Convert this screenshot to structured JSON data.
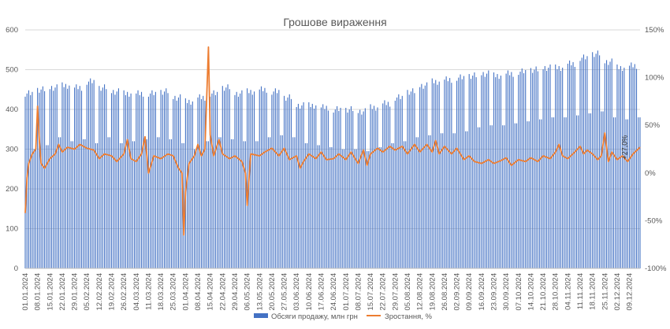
{
  "chart_data": {
    "type": "bar+line",
    "title": "Грошове вираження",
    "series": [
      {
        "name": "Обсяги продажу, млн грн",
        "type": "bar",
        "axis": "left",
        "color": "#4472C4"
      },
      {
        "name": "Зростання, %",
        "type": "line",
        "axis": "right",
        "color": "#ED7D31"
      }
    ],
    "y_left": {
      "min": 0,
      "max": 600,
      "ticks": [
        "0",
        "100",
        "200",
        "300",
        "400",
        "500",
        "600"
      ]
    },
    "y_right": {
      "min": -100,
      "max": 150,
      "ticks": [
        "-100%",
        "-50%",
        "0%",
        "50%",
        "100%",
        "150%"
      ]
    },
    "x_range": {
      "start": "01.01.2024",
      "end": "15.12.2024"
    },
    "x_ticks": [
      "01.01.2024",
      "08.01.2024",
      "15.01.2024",
      "22.01.2024",
      "29.01.2024",
      "05.02.2024",
      "12.02.2024",
      "19.02.2024",
      "26.02.2024",
      "04.03.2024",
      "11.03.2024",
      "18.03.2024",
      "25.03.2024",
      "01.04.2024",
      "08.04.2024",
      "15.04.2024",
      "22.04.2024",
      "29.04.2024",
      "06.05.2024",
      "13.05.2024",
      "20.05.2024",
      "27.05.2024",
      "03.06.2024",
      "10.06.2024",
      "17.06.2024",
      "24.06.2024",
      "01.07.2024",
      "08.07.2024",
      "15.07.2024",
      "22.07.2024",
      "29.07.2024",
      "05.08.2024",
      "12.08.2024",
      "19.08.2024",
      "26.08.2024",
      "02.09.2024",
      "09.09.2024",
      "16.09.2024",
      "23.09.2024",
      "30.09.2024",
      "07.10.2024",
      "14.10.2024",
      "21.10.2024",
      "28.10.2024",
      "04.11.2024",
      "11.11.2024",
      "18.11.2024",
      "25.11.2024",
      "02.12.2024",
      "09.12.2024"
    ],
    "weekly_sales": [
      {
        "week": "01.01.2024",
        "weekday": 440,
        "weekend": 300
      },
      {
        "week": "08.01.2024",
        "weekday": 450,
        "weekend": 310
      },
      {
        "week": "15.01.2024",
        "weekday": 455,
        "weekend": 330
      },
      {
        "week": "22.01.2024",
        "weekday": 460,
        "weekend": 320
      },
      {
        "week": "29.01.2024",
        "weekday": 455,
        "weekend": 325
      },
      {
        "week": "05.02.2024",
        "weekday": 470,
        "weekend": 315
      },
      {
        "week": "12.02.2024",
        "weekday": 455,
        "weekend": 330
      },
      {
        "week": "19.02.2024",
        "weekday": 445,
        "weekend": 315
      },
      {
        "week": "26.02.2024",
        "weekday": 440,
        "weekend": 320
      },
      {
        "week": "04.03.2024",
        "weekday": 440,
        "weekend": 325
      },
      {
        "week": "11.03.2024",
        "weekday": 440,
        "weekend": 330
      },
      {
        "week": "18.03.2024",
        "weekday": 445,
        "weekend": 325
      },
      {
        "week": "25.03.2024",
        "weekday": 430,
        "weekend": 315
      },
      {
        "week": "01.04.2024",
        "weekday": 420,
        "weekend": 300
      },
      {
        "week": "08.04.2024",
        "weekday": 430,
        "weekend": 320
      },
      {
        "week": "15.04.2024",
        "weekday": 440,
        "weekend": 330
      },
      {
        "week": "22.04.2024",
        "weekday": 455,
        "weekend": 325
      },
      {
        "week": "29.04.2024",
        "weekday": 440,
        "weekend": 320
      },
      {
        "week": "06.05.2024",
        "weekday": 445,
        "weekend": 320
      },
      {
        "week": "13.05.2024",
        "weekday": 450,
        "weekend": 330
      },
      {
        "week": "20.05.2024",
        "weekday": 445,
        "weekend": 335
      },
      {
        "week": "27.05.2024",
        "weekday": 430,
        "weekend": 330
      },
      {
        "week": "03.06.2024",
        "weekday": 410,
        "weekend": 315
      },
      {
        "week": "10.06.2024",
        "weekday": 410,
        "weekend": 310
      },
      {
        "week": "17.06.2024",
        "weekday": 405,
        "weekend": 305
      },
      {
        "week": "24.06.2024",
        "weekday": 400,
        "weekend": 300
      },
      {
        "week": "01.07.2024",
        "weekday": 400,
        "weekend": 300
      },
      {
        "week": "08.07.2024",
        "weekday": 395,
        "weekend": 295
      },
      {
        "week": "15.07.2024",
        "weekday": 405,
        "weekend": 305
      },
      {
        "week": "22.07.2024",
        "weekday": 415,
        "weekend": 315
      },
      {
        "week": "29.07.2024",
        "weekday": 430,
        "weekend": 320
      },
      {
        "week": "05.08.2024",
        "weekday": 445,
        "weekend": 330
      },
      {
        "week": "12.08.2024",
        "weekday": 460,
        "weekend": 335
      },
      {
        "week": "19.08.2024",
        "weekday": 470,
        "weekend": 340
      },
      {
        "week": "26.08.2024",
        "weekday": 475,
        "weekend": 340
      },
      {
        "week": "02.09.2024",
        "weekday": 480,
        "weekend": 345
      },
      {
        "week": "09.09.2024",
        "weekday": 485,
        "weekend": 355
      },
      {
        "week": "16.09.2024",
        "weekday": 490,
        "weekend": 360
      },
      {
        "week": "23.09.2024",
        "weekday": 485,
        "weekend": 360
      },
      {
        "week": "30.09.2024",
        "weekday": 490,
        "weekend": 365
      },
      {
        "week": "07.10.2024",
        "weekday": 495,
        "weekend": 370
      },
      {
        "week": "14.10.2024",
        "weekday": 500,
        "weekend": 375
      },
      {
        "week": "21.10.2024",
        "weekday": 505,
        "weekend": 380
      },
      {
        "week": "28.10.2024",
        "weekday": 505,
        "weekend": 380
      },
      {
        "week": "04.11.2024",
        "weekday": 515,
        "weekend": 385
      },
      {
        "week": "11.11.2024",
        "weekday": 530,
        "weekend": 390
      },
      {
        "week": "18.11.2024",
        "weekday": 540,
        "weekend": 395
      },
      {
        "week": "25.11.2024",
        "weekday": 520,
        "weekend": 380
      },
      {
        "week": "02.12.2024",
        "weekday": 505,
        "weekend": 375
      },
      {
        "week": "09.12.2024",
        "weekday": 510,
        "weekend": 380
      }
    ],
    "growth_pct": [
      {
        "date": "01.01.2024",
        "value": -42
      },
      {
        "date": "02.01.2024",
        "value": -5
      },
      {
        "date": "03.01.2024",
        "value": 10
      },
      {
        "date": "05.01.2024",
        "value": 20
      },
      {
        "date": "07.01.2024",
        "value": 25
      },
      {
        "date": "08.01.2024",
        "value": 70
      },
      {
        "date": "09.01.2024",
        "value": 35
      },
      {
        "date": "10.01.2024",
        "value": 10
      },
      {
        "date": "12.01.2024",
        "value": 5
      },
      {
        "date": "15.01.2024",
        "value": 15
      },
      {
        "date": "18.01.2024",
        "value": 20
      },
      {
        "date": "20.01.2024",
        "value": 30
      },
      {
        "date": "22.01.2024",
        "value": 22
      },
      {
        "date": "25.01.2024",
        "value": 27
      },
      {
        "date": "29.01.2024",
        "value": 25
      },
      {
        "date": "01.02.2024",
        "value": 30
      },
      {
        "date": "05.02.2024",
        "value": 26
      },
      {
        "date": "09.02.2024",
        "value": 24
      },
      {
        "date": "12.02.2024",
        "value": 15
      },
      {
        "date": "15.02.2024",
        "value": 20
      },
      {
        "date": "19.02.2024",
        "value": 18
      },
      {
        "date": "22.02.2024",
        "value": 12
      },
      {
        "date": "26.02.2024",
        "value": 20
      },
      {
        "date": "28.02.2024",
        "value": 35
      },
      {
        "date": "01.03.2024",
        "value": 15
      },
      {
        "date": "04.03.2024",
        "value": 12
      },
      {
        "date": "07.03.2024",
        "value": 20
      },
      {
        "date": "09.03.2024",
        "value": 38
      },
      {
        "date": "11.03.2024",
        "value": 0
      },
      {
        "date": "14.03.2024",
        "value": 18
      },
      {
        "date": "18.03.2024",
        "value": 15
      },
      {
        "date": "22.03.2024",
        "value": 20
      },
      {
        "date": "25.03.2024",
        "value": 18
      },
      {
        "date": "28.03.2024",
        "value": 5
      },
      {
        "date": "30.03.2024",
        "value": 0
      },
      {
        "date": "31.03.2024",
        "value": -65
      },
      {
        "date": "01.04.2024",
        "value": -20
      },
      {
        "date": "03.04.2024",
        "value": 10
      },
      {
        "date": "06.04.2024",
        "value": 18
      },
      {
        "date": "08.04.2024",
        "value": 30
      },
      {
        "date": "10.04.2024",
        "value": 18
      },
      {
        "date": "12.04.2024",
        "value": 25
      },
      {
        "date": "14.04.2024",
        "value": 132
      },
      {
        "date": "15.04.2024",
        "value": 40
      },
      {
        "date": "17.04.2024",
        "value": 18
      },
      {
        "date": "20.04.2024",
        "value": 35
      },
      {
        "date": "22.04.2024",
        "value": 20
      },
      {
        "date": "26.04.2024",
        "value": 15
      },
      {
        "date": "29.04.2024",
        "value": 18
      },
      {
        "date": "03.05.2024",
        "value": 12
      },
      {
        "date": "05.05.2024",
        "value": 0
      },
      {
        "date": "06.05.2024",
        "value": -34
      },
      {
        "date": "08.05.2024",
        "value": 20
      },
      {
        "date": "13.05.2024",
        "value": 18
      },
      {
        "date": "16.05.2024",
        "value": 22
      },
      {
        "date": "20.05.2024",
        "value": 26
      },
      {
        "date": "24.05.2024",
        "value": 18
      },
      {
        "date": "27.05.2024",
        "value": 26
      },
      {
        "date": "30.05.2024",
        "value": 14
      },
      {
        "date": "03.06.2024",
        "value": 18
      },
      {
        "date": "05.06.2024",
        "value": 5
      },
      {
        "date": "07.06.2024",
        "value": 12
      },
      {
        "date": "10.06.2024",
        "value": 20
      },
      {
        "date": "14.06.2024",
        "value": 15
      },
      {
        "date": "17.06.2024",
        "value": 22
      },
      {
        "date": "20.06.2024",
        "value": 14
      },
      {
        "date": "24.06.2024",
        "value": 15
      },
      {
        "date": "27.06.2024",
        "value": 20
      },
      {
        "date": "01.07.2024",
        "value": 14
      },
      {
        "date": "04.07.2024",
        "value": 22
      },
      {
        "date": "08.07.2024",
        "value": 10
      },
      {
        "date": "11.07.2024",
        "value": 24
      },
      {
        "date": "13.07.2024",
        "value": 8
      },
      {
        "date": "15.07.2024",
        "value": 20
      },
      {
        "date": "19.07.2024",
        "value": 26
      },
      {
        "date": "22.07.2024",
        "value": 22
      },
      {
        "date": "26.07.2024",
        "value": 28
      },
      {
        "date": "29.07.2024",
        "value": 24
      },
      {
        "date": "02.08.2024",
        "value": 28
      },
      {
        "date": "05.08.2024",
        "value": 20
      },
      {
        "date": "09.08.2024",
        "value": 30
      },
      {
        "date": "12.08.2024",
        "value": 22
      },
      {
        "date": "16.08.2024",
        "value": 30
      },
      {
        "date": "19.08.2024",
        "value": 22
      },
      {
        "date": "21.08.2024",
        "value": 34
      },
      {
        "date": "23.08.2024",
        "value": 20
      },
      {
        "date": "26.08.2024",
        "value": 28
      },
      {
        "date": "30.08.2024",
        "value": 20
      },
      {
        "date": "02.09.2024",
        "value": 26
      },
      {
        "date": "06.09.2024",
        "value": 14
      },
      {
        "date": "09.09.2024",
        "value": 18
      },
      {
        "date": "12.09.2024",
        "value": 12
      },
      {
        "date": "16.09.2024",
        "value": 10
      },
      {
        "date": "20.09.2024",
        "value": 14
      },
      {
        "date": "23.09.2024",
        "value": 10
      },
      {
        "date": "27.09.2024",
        "value": 13
      },
      {
        "date": "30.09.2024",
        "value": 16
      },
      {
        "date": "03.10.2024",
        "value": 8
      },
      {
        "date": "07.10.2024",
        "value": 14
      },
      {
        "date": "11.10.2024",
        "value": 12
      },
      {
        "date": "14.10.2024",
        "value": 16
      },
      {
        "date": "18.10.2024",
        "value": 12
      },
      {
        "date": "21.10.2024",
        "value": 18
      },
      {
        "date": "25.10.2024",
        "value": 15
      },
      {
        "date": "28.10.2024",
        "value": 22
      },
      {
        "date": "30.10.2024",
        "value": 30
      },
      {
        "date": "01.11.2024",
        "value": 18
      },
      {
        "date": "04.11.2024",
        "value": 15
      },
      {
        "date": "08.11.2024",
        "value": 22
      },
      {
        "date": "11.11.2024",
        "value": 28
      },
      {
        "date": "13.11.2024",
        "value": 20
      },
      {
        "date": "15.11.2024",
        "value": 24
      },
      {
        "date": "18.11.2024",
        "value": 20
      },
      {
        "date": "21.11.2024",
        "value": 14
      },
      {
        "date": "23.11.2024",
        "value": 18
      },
      {
        "date": "25.11.2024",
        "value": 42
      },
      {
        "date": "27.11.2024",
        "value": 12
      },
      {
        "date": "29.11.2024",
        "value": 22
      },
      {
        "date": "02.12.2024",
        "value": 14
      },
      {
        "date": "05.12.2024",
        "value": 18
      },
      {
        "date": "08.12.2024",
        "value": 12
      },
      {
        "date": "11.12.2024",
        "value": 20
      },
      {
        "date": "15.12.2024",
        "value": 27
      }
    ],
    "annotation": {
      "text": "+27,0%",
      "date": "09.12.2024",
      "value": 27
    },
    "legend_position": "bottom",
    "grid": "horizontal"
  }
}
